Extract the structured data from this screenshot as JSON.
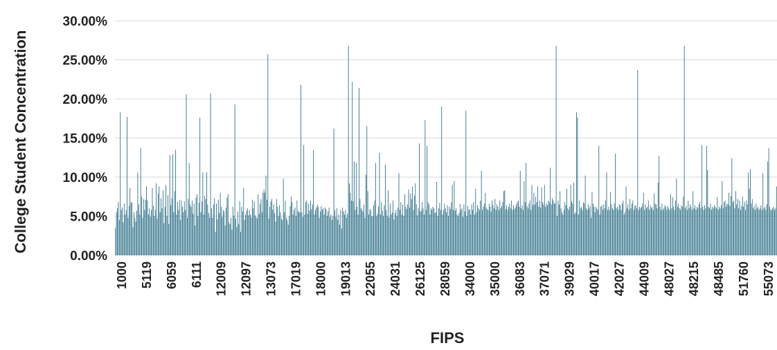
{
  "chart_data": {
    "type": "bar",
    "title": "",
    "xlabel": "FIPS",
    "ylabel": "College Student Concentration",
    "ylim": [
      0,
      0.3
    ],
    "y_ticks": [
      {
        "value": 0.0,
        "label": "0.00%"
      },
      {
        "value": 0.05,
        "label": "5.00%"
      },
      {
        "value": 0.1,
        "label": "10.00%"
      },
      {
        "value": 0.15,
        "label": "15.00%"
      },
      {
        "value": 0.2,
        "label": "20.00%"
      },
      {
        "value": 0.25,
        "label": "25.00%"
      },
      {
        "value": 0.3,
        "label": "30.00%"
      }
    ],
    "x_tick_labels": [
      "1000",
      "5119",
      "6059",
      "6111",
      "12009",
      "12097",
      "13073",
      "17019",
      "18000",
      "19013",
      "22055",
      "24031",
      "26125",
      "28059",
      "34000",
      "35000",
      "36083",
      "37071",
      "39029",
      "40017",
      "42027",
      "44009",
      "48027",
      "48215",
      "48485",
      "51760",
      "55073"
    ],
    "grid": true,
    "bar_color": "#2b6f86",
    "values": [
      0.035,
      0.055,
      0.06,
      0.068,
      0.045,
      0.183,
      0.058,
      0.061,
      0.042,
      0.066,
      0.052,
      0.058,
      0.177,
      0.048,
      0.063,
      0.086,
      0.067,
      0.068,
      0.036,
      0.055,
      0.048,
      0.043,
      0.057,
      0.106,
      0.065,
      0.052,
      0.137,
      0.075,
      0.048,
      0.072,
      0.058,
      0.071,
      0.088,
      0.07,
      0.052,
      0.06,
      0.049,
      0.058,
      0.086,
      0.063,
      0.05,
      0.058,
      0.092,
      0.047,
      0.079,
      0.088,
      0.055,
      0.073,
      0.06,
      0.083,
      0.041,
      0.062,
      0.09,
      0.05,
      0.077,
      0.04,
      0.128,
      0.064,
      0.073,
      0.129,
      0.055,
      0.082,
      0.135,
      0.052,
      0.068,
      0.058,
      0.071,
      0.045,
      0.07,
      0.062,
      0.055,
      0.069,
      0.058,
      0.206,
      0.048,
      0.072,
      0.118,
      0.065,
      0.062,
      0.07,
      0.053,
      0.066,
      0.038,
      0.074,
      0.078,
      0.05,
      0.067,
      0.176,
      0.055,
      0.069,
      0.106,
      0.052,
      0.076,
      0.072,
      0.106,
      0.065,
      0.054,
      0.048,
      0.207,
      0.06,
      0.048,
      0.065,
      0.073,
      0.03,
      0.066,
      0.046,
      0.071,
      0.054,
      0.08,
      0.062,
      0.049,
      0.058,
      0.056,
      0.038,
      0.061,
      0.074,
      0.078,
      0.042,
      0.04,
      0.048,
      0.033,
      0.062,
      0.05,
      0.193,
      0.047,
      0.036,
      0.056,
      0.04,
      0.069,
      0.03,
      0.062,
      0.056,
      0.086,
      0.045,
      0.052,
      0.057,
      0.06,
      0.051,
      0.058,
      0.052,
      0.048,
      0.071,
      0.06,
      0.069,
      0.051,
      0.049,
      0.047,
      0.078,
      0.053,
      0.066,
      0.072,
      0.055,
      0.08,
      0.084,
      0.08,
      0.102,
      0.071,
      0.257,
      0.047,
      0.062,
      0.069,
      0.072,
      0.058,
      0.065,
      0.054,
      0.043,
      0.072,
      0.062,
      0.05,
      0.064,
      0.055,
      0.047,
      0.045,
      0.098,
      0.055,
      0.07,
      0.048,
      0.045,
      0.039,
      0.05,
      0.063,
      0.075,
      0.068,
      0.052,
      0.058,
      0.061,
      0.05,
      0.07,
      0.057,
      0.055,
      0.055,
      0.218,
      0.055,
      0.049,
      0.141,
      0.052,
      0.068,
      0.07,
      0.053,
      0.066,
      0.057,
      0.07,
      0.059,
      0.065,
      0.135,
      0.052,
      0.058,
      0.061,
      0.065,
      0.062,
      0.048,
      0.056,
      0.063,
      0.058,
      0.06,
      0.052,
      0.061,
      0.059,
      0.05,
      0.056,
      0.061,
      0.049,
      0.052,
      0.045,
      0.05,
      0.162,
      0.058,
      0.049,
      0.06,
      0.045,
      0.052,
      0.039,
      0.058,
      0.034,
      0.061,
      0.056,
      0.052,
      0.058,
      0.048,
      0.053,
      0.268,
      0.092,
      0.08,
      0.07,
      0.222,
      0.069,
      0.12,
      0.058,
      0.118,
      0.062,
      0.052,
      0.214,
      0.072,
      0.06,
      0.058,
      0.056,
      0.065,
      0.048,
      0.103,
      0.165,
      0.082,
      0.052,
      0.059,
      0.058,
      0.05,
      0.05,
      0.064,
      0.07,
      0.118,
      0.05,
      0.053,
      0.062,
      0.131,
      0.052,
      0.068,
      0.057,
      0.05,
      0.064,
      0.116,
      0.058,
      0.05,
      0.083,
      0.048,
      0.066,
      0.052,
      0.055,
      0.07,
      0.046,
      0.054,
      0.058,
      0.05,
      0.061,
      0.105,
      0.058,
      0.068,
      0.052,
      0.065,
      0.05,
      0.078,
      0.062,
      0.059,
      0.065,
      0.084,
      0.061,
      0.079,
      0.072,
      0.088,
      0.058,
      0.076,
      0.092,
      0.065,
      0.051,
      0.06,
      0.143,
      0.056,
      0.057,
      0.068,
      0.06,
      0.052,
      0.173,
      0.058,
      0.14,
      0.068,
      0.065,
      0.052,
      0.06,
      0.058,
      0.062,
      0.06,
      0.054,
      0.055,
      0.094,
      0.05,
      0.06,
      0.067,
      0.058,
      0.19,
      0.052,
      0.058,
      0.066,
      0.06,
      0.055,
      0.064,
      0.05,
      0.062,
      0.059,
      0.068,
      0.09,
      0.058,
      0.095,
      0.057,
      0.06,
      0.052,
      0.05,
      0.054,
      0.066,
      0.058,
      0.06,
      0.049,
      0.065,
      0.056,
      0.185,
      0.05,
      0.063,
      0.058,
      0.059,
      0.052,
      0.065,
      0.058,
      0.068,
      0.052,
      0.085,
      0.055,
      0.064,
      0.06,
      0.058,
      0.07,
      0.108,
      0.058,
      0.062,
      0.066,
      0.08,
      0.061,
      0.059,
      0.058,
      0.066,
      0.062,
      0.056,
      0.07,
      0.064,
      0.06,
      0.072,
      0.058,
      0.065,
      0.062,
      0.058,
      0.07,
      0.06,
      0.063,
      0.068,
      0.082,
      0.083,
      0.059,
      0.064,
      0.058,
      0.062,
      0.066,
      0.06,
      0.07,
      0.058,
      0.064,
      0.059,
      0.061,
      0.065,
      0.068,
      0.07,
      0.062,
      0.108,
      0.06,
      0.064,
      0.058,
      0.095,
      0.068,
      0.118,
      0.063,
      0.06,
      0.066,
      0.07,
      0.058,
      0.09,
      0.064,
      0.08,
      0.065,
      0.075,
      0.068,
      0.088,
      0.062,
      0.07,
      0.061,
      0.087,
      0.068,
      0.065,
      0.09,
      0.062,
      0.066,
      0.064,
      0.07,
      0.068,
      0.112,
      0.065,
      0.073,
      0.07,
      0.066,
      0.067,
      0.268,
      0.05,
      0.07,
      0.065,
      0.082,
      0.06,
      0.055,
      0.052,
      0.058,
      0.068,
      0.064,
      0.085,
      0.06,
      0.058,
      0.062,
      0.09,
      0.069,
      0.066,
      0.093,
      0.053,
      0.055,
      0.183,
      0.176,
      0.052,
      0.07,
      0.06,
      0.062,
      0.058,
      0.068,
      0.066,
      0.102,
      0.06,
      0.058,
      0.065,
      0.06,
      0.063,
      0.048,
      0.081,
      0.066,
      0.062,
      0.055,
      0.062,
      0.06,
      0.058,
      0.14,
      0.052,
      0.062,
      0.064,
      0.058,
      0.065,
      0.06,
      0.07,
      0.106,
      0.058,
      0.062,
      0.058,
      0.081,
      0.065,
      0.06,
      0.058,
      0.066,
      0.13,
      0.06,
      0.062,
      0.058,
      0.065,
      0.064,
      0.058,
      0.066,
      0.07,
      0.052,
      0.055,
      0.088,
      0.06,
      0.065,
      0.058,
      0.072,
      0.06,
      0.066,
      0.07,
      0.058,
      0.063,
      0.064,
      0.06,
      0.237,
      0.058,
      0.062,
      0.06,
      0.062,
      0.066,
      0.08,
      0.058,
      0.065,
      0.06,
      0.062,
      0.07,
      0.058,
      0.064,
      0.06,
      0.062,
      0.058,
      0.079,
      0.066,
      0.065,
      0.06,
      0.093,
      0.127,
      0.062,
      0.058,
      0.066,
      0.058,
      0.06,
      0.064,
      0.062,
      0.058,
      0.063,
      0.06,
      0.058,
      0.078,
      0.06,
      0.074,
      0.062,
      0.058,
      0.07,
      0.098,
      0.062,
      0.066,
      0.06,
      0.058,
      0.064,
      0.062,
      0.075,
      0.268,
      0.06,
      0.063,
      0.058,
      0.07,
      0.06,
      0.065,
      0.062,
      0.058,
      0.082,
      0.06,
      0.064,
      0.058,
      0.062,
      0.06,
      0.065,
      0.068,
      0.06,
      0.141,
      0.062,
      0.058,
      0.064,
      0.06,
      0.14,
      0.109,
      0.062,
      0.06,
      0.066,
      0.058,
      0.062,
      0.06,
      0.064,
      0.062,
      0.06,
      0.074,
      0.058,
      0.062,
      0.06,
      0.064,
      0.095,
      0.06,
      0.068,
      0.07,
      0.062,
      0.066,
      0.065,
      0.08,
      0.063,
      0.076,
      0.124,
      0.068,
      0.07,
      0.06,
      0.082,
      0.065,
      0.072,
      0.06,
      0.07,
      0.058,
      0.063,
      0.075,
      0.062,
      0.068,
      0.058,
      0.07,
      0.065,
      0.106,
      0.085,
      0.11,
      0.066,
      0.072,
      0.06,
      0.063,
      0.058,
      0.066,
      0.06,
      0.062,
      0.058,
      0.06,
      0.064,
      0.058,
      0.105,
      0.06,
      0.062,
      0.058,
      0.065,
      0.12,
      0.137,
      0.062,
      0.058,
      0.058,
      0.06,
      0.062,
      0.058,
      0.06,
      0.088
    ]
  }
}
